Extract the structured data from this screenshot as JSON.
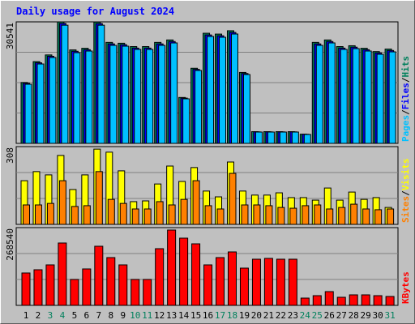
{
  "title": "Daily usage for August 2024",
  "chart_data": [
    {
      "type": "bar",
      "categories": [
        "1",
        "2",
        "3",
        "4",
        "5",
        "6",
        "7",
        "8",
        "9",
        "10",
        "11",
        "12",
        "13",
        "14",
        "15",
        "16",
        "17",
        "18",
        "19",
        "20",
        "21",
        "22",
        "23",
        "24",
        "25",
        "26",
        "27",
        "28",
        "29",
        "30",
        "31"
      ],
      "ylim": [
        0,
        30541
      ],
      "legend_separator": "/",
      "series": [
        {
          "name": "Pages",
          "color": "#00c0ff",
          "values": [
            14863,
            19953,
            21582,
            29700,
            22804,
            23211,
            29700,
            24636,
            24433,
            23618,
            23618,
            24636,
            25247,
            11198,
            18325,
            26876,
            26672,
            27487,
            17307,
            2850,
            2850,
            2850,
            2850,
            2240,
            24636,
            25247,
            23618,
            23822,
            23211,
            22397,
            23008
          ]
        },
        {
          "name": "Files",
          "color": "#0000ff",
          "values": [
            15100,
            20250,
            21900,
            30150,
            23150,
            23550,
            30100,
            25000,
            24800,
            23950,
            23950,
            25000,
            25600,
            11380,
            18600,
            27250,
            27050,
            27880,
            17560,
            2900,
            2900,
            2900,
            2900,
            2280,
            25000,
            25600,
            23950,
            24180,
            23550,
            22730,
            23350
          ]
        },
        {
          "name": "Hits",
          "color": "#00805c",
          "values": [
            15300,
            20550,
            22230,
            30541,
            23490,
            23900,
            30500,
            25380,
            25170,
            24330,
            24330,
            25380,
            26000,
            11540,
            18880,
            27680,
            27470,
            28310,
            17830,
            2940,
            2940,
            2940,
            2940,
            2310,
            25380,
            26000,
            24330,
            24540,
            23900,
            23070,
            23700
          ]
        }
      ]
    },
    {
      "type": "bar",
      "ylim": [
        0,
        308
      ],
      "legend_separator": "/",
      "series": [
        {
          "name": "Sites",
          "color": "#ff8000",
          "values": [
            77,
            77,
            83,
            173,
            71,
            74,
            209,
            99,
            83,
            61,
            61,
            90,
            77,
            99,
            173,
            74,
            61,
            202,
            77,
            77,
            74,
            67,
            64,
            74,
            77,
            61,
            67,
            80,
            61,
            58,
            61
          ]
        },
        {
          "name": "Visits",
          "color": "#ffff00",
          "values": [
            173,
            209,
            196,
            273,
            138,
            196,
            298,
            286,
            212,
            90,
            93,
            160,
            231,
            170,
            225,
            132,
            109,
            247,
            132,
            116,
            116,
            125,
            106,
            106,
            96,
            144,
            96,
            128,
            99,
            106,
            67
          ]
        }
      ]
    },
    {
      "type": "bar",
      "ylim": [
        0,
        268540
      ],
      "weekend_categories": [
        "3",
        "4",
        "10",
        "11",
        "17",
        "18",
        "24",
        "25",
        "31"
      ],
      "weekend_color": "#00805c",
      "series": [
        {
          "name": "KBytes",
          "color": "#ff0000",
          "values": [
            111892,
            123081,
            139865,
            215392,
            89513,
            125878,
            204203,
            165041,
            139865,
            89513,
            89513,
            195810,
            260148,
            232175,
            212594,
            139865,
            165041,
            184621,
            128676,
            159447,
            162244,
            159447,
            159447,
            25176,
            33568,
            47554,
            27973,
            36365,
            36365,
            33568,
            30770
          ]
        }
      ]
    }
  ]
}
